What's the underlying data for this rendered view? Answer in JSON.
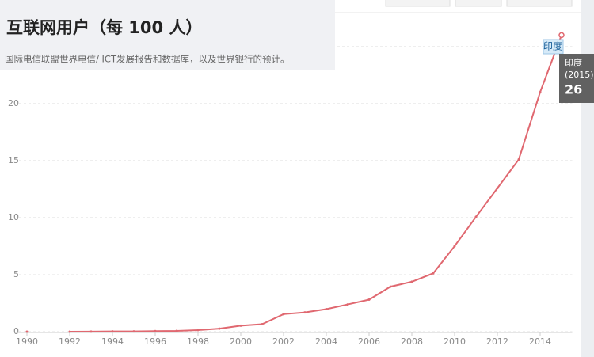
{
  "chart_data": {
    "type": "line",
    "title": "互联网用户（每 100 人）",
    "subtitle": "国际电信联盟世界电信/ ICT发展报告和数据库，以及世界银行的预计。",
    "x": [
      1990,
      1991,
      1992,
      1993,
      1994,
      1995,
      1996,
      1997,
      1998,
      1999,
      2000,
      2001,
      2002,
      2003,
      2004,
      2005,
      2006,
      2007,
      2008,
      2009,
      2010,
      2011,
      2012,
      2013,
      2014,
      2015
    ],
    "series": [
      {
        "name": "印度",
        "color": "#e06870",
        "values": [
          0,
          null,
          0,
          0.01,
          0.03,
          0.03,
          0.05,
          0.07,
          0.14,
          0.27,
          0.53,
          0.66,
          1.54,
          1.69,
          1.98,
          2.39,
          2.81,
          3.95,
          4.38,
          5.12,
          7.5,
          10.07,
          12.58,
          15.1,
          21,
          26
        ]
      }
    ],
    "xlim": [
      1990,
      2015.5
    ],
    "xticks": [
      1990,
      1992,
      1994,
      1996,
      1998,
      2000,
      2002,
      2004,
      2006,
      2008,
      2010,
      2012,
      2014
    ],
    "ylim": [
      0,
      27
    ],
    "yticks": [
      0,
      5,
      10,
      15,
      20,
      25
    ],
    "grid": true,
    "tooltip": {
      "period": "(2015)"
    }
  }
}
